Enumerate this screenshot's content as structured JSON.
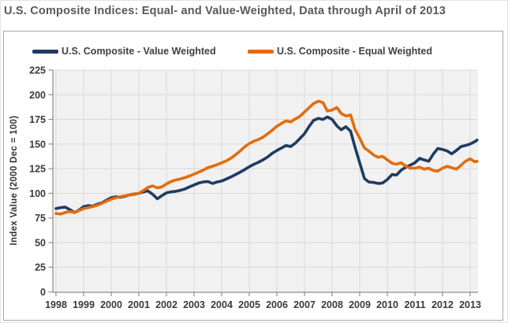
{
  "colors": {
    "navy": "#1F3B63",
    "orange": "#E36C0A",
    "plot_bg": "#F1F1F1",
    "gridline": "#D9D9D9",
    "axis": "#8C8C8C",
    "title_text": "#595959",
    "tick_text": "#3A3A3A"
  },
  "chart_data": {
    "type": "line",
    "title": "U.S. Composite Indices: Equal- and Value-Weighted, Data through April of 2013",
    "xlabel": "",
    "ylabel": "Index Value (2000 Dec = 100)",
    "ylim": [
      0,
      225
    ],
    "y_ticks": [
      0,
      25,
      50,
      75,
      100,
      125,
      150,
      175,
      200,
      225
    ],
    "x_ticks": [
      1998,
      1999,
      2000,
      2001,
      2002,
      2003,
      2004,
      2005,
      2006,
      2007,
      2008,
      2009,
      2010,
      2011,
      2012,
      2013
    ],
    "grid": true,
    "legend_position": "top",
    "x_unit": "year (monthly data, sampled bimonthly, ends April 2013)",
    "x": [
      1998,
      1998.17,
      1998.33,
      1998.5,
      1998.67,
      1998.83,
      1999,
      1999.17,
      1999.33,
      1999.5,
      1999.67,
      1999.83,
      2000,
      2000.17,
      2000.33,
      2000.5,
      2000.67,
      2000.83,
      2001,
      2001.17,
      2001.33,
      2001.5,
      2001.67,
      2001.83,
      2002,
      2002.17,
      2002.33,
      2002.5,
      2002.67,
      2002.83,
      2003,
      2003.17,
      2003.33,
      2003.5,
      2003.67,
      2003.83,
      2004,
      2004.17,
      2004.33,
      2004.5,
      2004.67,
      2004.83,
      2005,
      2005.17,
      2005.33,
      2005.5,
      2005.67,
      2005.83,
      2006,
      2006.17,
      2006.33,
      2006.5,
      2006.67,
      2006.83,
      2007,
      2007.17,
      2007.33,
      2007.5,
      2007.67,
      2007.83,
      2008,
      2008.17,
      2008.33,
      2008.5,
      2008.67,
      2008.83,
      2009,
      2009.17,
      2009.33,
      2009.5,
      2009.67,
      2009.83,
      2010,
      2010.17,
      2010.33,
      2010.5,
      2010.67,
      2010.83,
      2011,
      2011.17,
      2011.33,
      2011.5,
      2011.67,
      2011.83,
      2012,
      2012.17,
      2012.33,
      2012.5,
      2012.67,
      2012.83,
      2013,
      2013.17,
      2013.25
    ],
    "series": [
      {
        "name": "U.S. Composite - Value Weighted",
        "color": "#1F3B63",
        "values": [
          84.5,
          85.5,
          86,
          83.5,
          80.5,
          83,
          86.5,
          87.5,
          87,
          89,
          90.5,
          93,
          95.5,
          96.5,
          96,
          97,
          98.5,
          99,
          100,
          101.5,
          102.5,
          99,
          94.5,
          97.5,
          100.5,
          101.5,
          102,
          103,
          104.5,
          106.5,
          108.5,
          110.5,
          111.5,
          112,
          110,
          111.5,
          112.5,
          114.5,
          116.5,
          119,
          121.5,
          124,
          127,
          129.5,
          131.5,
          134,
          137,
          140.5,
          143.5,
          146,
          148.5,
          147.5,
          151,
          155.5,
          160.5,
          168,
          174,
          176,
          175,
          177.5,
          175,
          168.5,
          164.5,
          167.5,
          163,
          147,
          131,
          115,
          111.5,
          111,
          110,
          110.5,
          114,
          119,
          118.5,
          123.5,
          126.5,
          128.5,
          131,
          135.5,
          134,
          132.5,
          140,
          145.5,
          144.5,
          143,
          140,
          143.5,
          147.5,
          148.5,
          150,
          152.5,
          154
        ]
      },
      {
        "name": "U.S. Composite - Equal Weighted",
        "color": "#E36C0A",
        "values": [
          79.5,
          79,
          80.5,
          81.5,
          80.5,
          82.5,
          84.5,
          85.5,
          86.5,
          88,
          90,
          92,
          94,
          95.5,
          96.5,
          97.5,
          98.5,
          99.5,
          100,
          103,
          106,
          107.5,
          105.5,
          106.5,
          109.5,
          112,
          113.5,
          114.5,
          116,
          117.5,
          119.5,
          121.5,
          123.5,
          126,
          127.5,
          129,
          131,
          133,
          135.5,
          139,
          143,
          147,
          150.5,
          153,
          154.5,
          157,
          160.5,
          164,
          168,
          171,
          173.5,
          172.5,
          175.5,
          178,
          182.5,
          187,
          191,
          193.5,
          192,
          183.5,
          184.5,
          187,
          181,
          178.5,
          179.5,
          165,
          156,
          146,
          143,
          139,
          136.5,
          137.5,
          134,
          130.5,
          129.5,
          131,
          127.5,
          125.5,
          125.5,
          126.5,
          124.5,
          125.5,
          123,
          122.5,
          125.5,
          127.5,
          126,
          124.5,
          128.5,
          132.5,
          135,
          132,
          132.5
        ]
      }
    ]
  }
}
